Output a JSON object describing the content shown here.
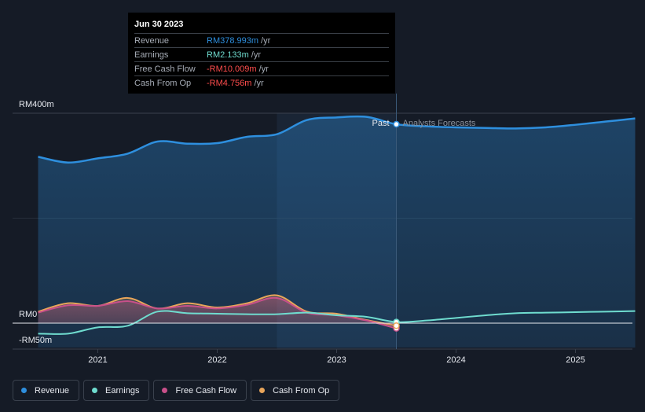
{
  "tooltip": {
    "date": "Jun 30 2023",
    "rows": [
      {
        "label": "Revenue",
        "value": "RM378.993m",
        "unit": "/yr",
        "color": "#2e8fde"
      },
      {
        "label": "Earnings",
        "value": "RM2.133m",
        "unit": "/yr",
        "color": "#6fdccf"
      },
      {
        "label": "Free Cash Flow",
        "value": "-RM10.009m",
        "unit": "/yr",
        "color": "#ff4d4d"
      },
      {
        "label": "Cash From Op",
        "value": "-RM4.756m",
        "unit": "/yr",
        "color": "#ff4d4d"
      }
    ]
  },
  "legend": [
    {
      "label": "Revenue",
      "color": "#2e8fde"
    },
    {
      "label": "Earnings",
      "color": "#6fdccf"
    },
    {
      "label": "Free Cash Flow",
      "color": "#c8508a"
    },
    {
      "label": "Cash From Op",
      "color": "#e8a55a"
    }
  ],
  "chart_data": {
    "type": "line",
    "title": "",
    "xlabel": "",
    "ylabel": "",
    "ylim": [
      -50,
      400
    ],
    "y_tick_labels": [
      "RM400m",
      "RM0",
      "-RM50m"
    ],
    "x_tick_labels": [
      "2021",
      "2022",
      "2023",
      "2024",
      "2025"
    ],
    "x_ticks": [
      2021,
      2022,
      2023,
      2024,
      2025
    ],
    "xlim": [
      2020.3,
      2025.5
    ],
    "past_label": "Past",
    "forecast_label": "Analysts Forecasts",
    "divider_x": 2023.5,
    "shade_start_x": 2022.5,
    "series": [
      {
        "name": "Revenue",
        "color": "#2e8fde",
        "fill": true,
        "points": [
          [
            2020.5,
            317
          ],
          [
            2020.75,
            306
          ],
          [
            2021.0,
            314
          ],
          [
            2021.25,
            323
          ],
          [
            2021.5,
            346
          ],
          [
            2021.75,
            342
          ],
          [
            2022.0,
            343
          ],
          [
            2022.25,
            355
          ],
          [
            2022.5,
            360
          ],
          [
            2022.75,
            387
          ],
          [
            2023.0,
            392
          ],
          [
            2023.25,
            393
          ],
          [
            2023.5,
            379
          ],
          [
            2023.75,
            375
          ],
          [
            2024.0,
            373
          ],
          [
            2024.25,
            372
          ],
          [
            2024.5,
            371
          ],
          [
            2024.75,
            373
          ],
          [
            2025.0,
            378
          ],
          [
            2025.25,
            384
          ],
          [
            2025.5,
            390
          ]
        ]
      },
      {
        "name": "Earnings",
        "color": "#6fdccf",
        "fill": false,
        "points": [
          [
            2020.5,
            -20
          ],
          [
            2020.75,
            -20
          ],
          [
            2021.0,
            -8
          ],
          [
            2021.25,
            -5
          ],
          [
            2021.5,
            22
          ],
          [
            2021.75,
            19
          ],
          [
            2022.0,
            18
          ],
          [
            2022.25,
            17
          ],
          [
            2022.5,
            17
          ],
          [
            2022.75,
            20
          ],
          [
            2023.0,
            15
          ],
          [
            2023.25,
            12
          ],
          [
            2023.5,
            2.1
          ],
          [
            2023.75,
            5
          ],
          [
            2024.0,
            10
          ],
          [
            2024.25,
            15
          ],
          [
            2024.5,
            19
          ],
          [
            2024.75,
            20
          ],
          [
            2025.0,
            21
          ],
          [
            2025.25,
            22
          ],
          [
            2025.5,
            23
          ]
        ]
      },
      {
        "name": "Free Cash Flow",
        "color": "#c8508a",
        "fill": true,
        "points": [
          [
            2020.5,
            20
          ],
          [
            2020.75,
            34
          ],
          [
            2021.0,
            33
          ],
          [
            2021.25,
            42
          ],
          [
            2021.5,
            28
          ],
          [
            2021.75,
            33
          ],
          [
            2022.0,
            28
          ],
          [
            2022.25,
            35
          ],
          [
            2022.5,
            48
          ],
          [
            2022.75,
            20
          ],
          [
            2023.0,
            15
          ],
          [
            2023.25,
            5
          ],
          [
            2023.5,
            -10
          ]
        ]
      },
      {
        "name": "Cash From Op",
        "color": "#e8a55a",
        "fill": true,
        "points": [
          [
            2020.5,
            22
          ],
          [
            2020.75,
            38
          ],
          [
            2021.0,
            33
          ],
          [
            2021.25,
            48
          ],
          [
            2021.5,
            28
          ],
          [
            2021.75,
            38
          ],
          [
            2022.0,
            30
          ],
          [
            2022.25,
            38
          ],
          [
            2022.5,
            53
          ],
          [
            2022.75,
            22
          ],
          [
            2023.0,
            18
          ],
          [
            2023.25,
            6
          ],
          [
            2023.5,
            -4.8
          ]
        ]
      }
    ]
  }
}
